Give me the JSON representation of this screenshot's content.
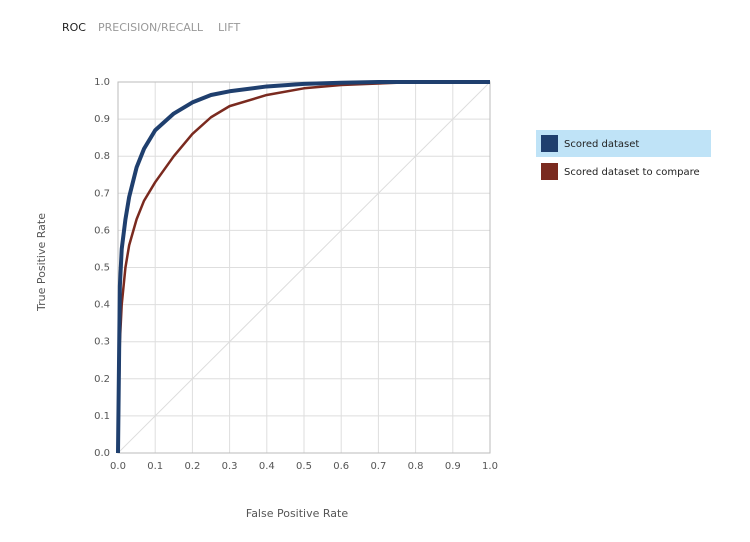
{
  "tabs": [
    "ROC",
    "PRECISION/RECALL",
    "LIFT"
  ],
  "chart_data": {
    "type": "line",
    "x_label": "False Positive Rate",
    "y_label": "True Positive Rate",
    "x": [
      0,
      0.005,
      0.01,
      0.02,
      0.03,
      0.05,
      0.07,
      0.1,
      0.15,
      0.2,
      0.25,
      0.3,
      0.4,
      0.5,
      0.6,
      0.7,
      0.8,
      0.9,
      1.0
    ],
    "series": [
      {
        "name": "Scored dataset",
        "color": "#1f3f6e",
        "values": [
          0,
          0.45,
          0.55,
          0.63,
          0.69,
          0.77,
          0.82,
          0.87,
          0.915,
          0.945,
          0.965,
          0.975,
          0.988,
          0.995,
          0.998,
          1,
          1,
          1,
          1
        ]
      },
      {
        "name": "Scored dataset to compare",
        "color": "#7a2a1f",
        "values": [
          0,
          0.3,
          0.4,
          0.5,
          0.56,
          0.63,
          0.68,
          0.73,
          0.8,
          0.86,
          0.905,
          0.935,
          0.965,
          0.983,
          0.992,
          0.996,
          1,
          1,
          1
        ]
      }
    ],
    "xlim": [
      0,
      1
    ],
    "ylim": [
      0,
      1
    ],
    "xticks": [
      {
        "value": 0,
        "label": "0.0"
      },
      0.1,
      0.2,
      0.3,
      0.4,
      0.5,
      0.6,
      0.7,
      0.8,
      0.9,
      {
        "value": 1,
        "label": "1.0"
      }
    ],
    "yticks": [
      {
        "value": 0,
        "label": "0.0"
      },
      0.1,
      0.2,
      0.3,
      0.4,
      0.5,
      0.6,
      0.7,
      0.8,
      0.9,
      {
        "value": 1,
        "label": "1.0"
      }
    ],
    "grid": true
  }
}
